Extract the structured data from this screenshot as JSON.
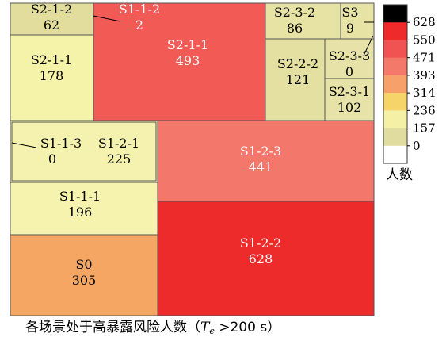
{
  "chart_data": {
    "type": "treemap",
    "title": "",
    "caption": {
      "text": "各场景处于高暴露风险人数（",
      "var": "T",
      "sub": "e",
      "condition": " >200 s）"
    },
    "cells": [
      {
        "name": "S2-1-2",
        "value": 62
      },
      {
        "name": "S1-1-2",
        "value": 2
      },
      {
        "name": "S2-1-1",
        "value": 493
      },
      {
        "name": "S2-3-2",
        "value": 86
      },
      {
        "name": "S3",
        "value": 9
      },
      {
        "name": "S2-1-1",
        "value": 178
      },
      {
        "name": "S2-2-2",
        "value": 121
      },
      {
        "name": "S2-3-3",
        "value": 0
      },
      {
        "name": "S2-3-1",
        "value": 102
      },
      {
        "name": "S1-1-3",
        "value": 0
      },
      {
        "name": "S1-2-1",
        "value": 225
      },
      {
        "name": "S1-2-3",
        "value": 441
      },
      {
        "name": "S1-1-1",
        "value": 196
      },
      {
        "name": "S1-2-2",
        "value": 628
      },
      {
        "name": "S0",
        "value": 305
      }
    ],
    "colorbar": {
      "title": "人数",
      "ticks": [
        "628",
        "550",
        "471",
        "393",
        "314",
        "236",
        "157",
        "0"
      ],
      "bands": [
        "#000000",
        "#ee2a2a",
        "#f15252",
        "#f37a6a",
        "#f8a06a",
        "#f6d46a",
        "#f4f1a6",
        "#e0dca0",
        "#ffffff"
      ]
    }
  }
}
